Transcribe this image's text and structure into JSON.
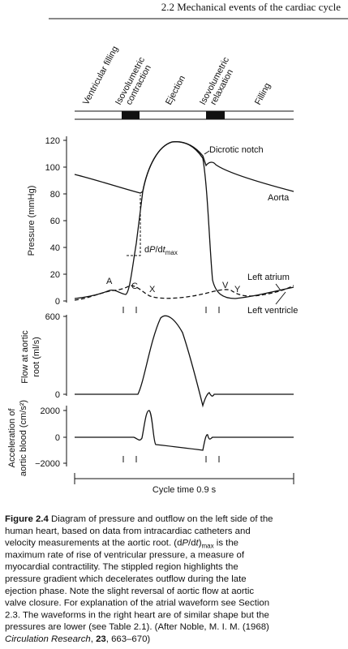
{
  "header": "2.2 Mechanical events of the cardiac cycle",
  "phases": [
    [
      "Ventricular filling"
    ],
    [
      "Isovolumetric",
      "contraction"
    ],
    [
      "Ejection"
    ],
    [
      "Isovolumetric",
      "relaxation"
    ],
    [
      "Filling"
    ]
  ],
  "pressure_panel": {
    "axis_label": "Pressure (mmHg)",
    "ticks": [
      "120",
      "100",
      "80",
      "60",
      "40",
      "20",
      "0"
    ],
    "dicrotic_notch": "Dicrotic notch",
    "aorta": "Aorta",
    "dpdt": [
      "d",
      "P",
      "/d",
      "t",
      "max"
    ],
    "waves": [
      "A",
      "C",
      "X",
      "V",
      "Y"
    ],
    "left_atrium": "Left atrium",
    "left_ventricle": "Left ventricle"
  },
  "flow_panel": {
    "axis_label": [
      "Flow at aortic",
      "root (ml/s)"
    ],
    "ticks": [
      "600",
      "0"
    ]
  },
  "accel_panel": {
    "axis_label": [
      "Acceleration of",
      "aortic blood (cm/s²)"
    ],
    "ticks": [
      "2000",
      "0",
      "−2000"
    ]
  },
  "time_axis_label": "Cycle time 0.9 s",
  "caption": [
    [
      "Figure 2.4",
      " Diagram of pressure and outflow on the left side of the"
    ],
    [
      "human heart, based on data from intracardiac catheters and"
    ],
    [
      "velocity measurements at the aortic root. (d",
      "P",
      "/d",
      "t",
      ")",
      "max",
      " is the"
    ],
    [
      "maximum rate of rise of ventricular pressure, a measure of"
    ],
    [
      "myocardial contractility. The stippled region highlights the"
    ],
    [
      "pressure gradient which decelerates outflow during the late"
    ],
    [
      "ejection phase. Note the slight reversal of aortic flow at aortic"
    ],
    [
      "valve closure. For explanation of the atrial waveform see Section"
    ],
    [
      "2.3. The waveforms in the right heart are of similar shape but the"
    ],
    [
      "pressures are lower (see Table 2.1). (After Noble, M. I. M. (1968)"
    ],
    [
      "Circulation Research",
      ", ",
      "23",
      ", 663–670)"
    ]
  ]
}
